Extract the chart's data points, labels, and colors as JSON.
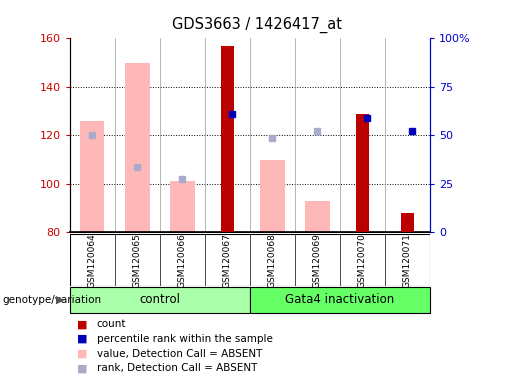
{
  "title": "GDS3663 / 1426417_at",
  "samples": [
    "GSM120064",
    "GSM120065",
    "GSM120066",
    "GSM120067",
    "GSM120068",
    "GSM120069",
    "GSM120070",
    "GSM120071"
  ],
  "group_labels": [
    "control",
    "Gata4 inactivation"
  ],
  "control_indices": [
    0,
    1,
    2,
    3
  ],
  "gata4_indices": [
    4,
    5,
    6,
    7
  ],
  "ylim_left": [
    80,
    160
  ],
  "ylim_right": [
    0,
    100
  ],
  "yticks_left": [
    80,
    100,
    120,
    140,
    160
  ],
  "yticks_right": [
    0,
    25,
    50,
    75,
    100
  ],
  "ytick_labels_right": [
    "0",
    "25",
    "50",
    "75",
    "100%"
  ],
  "bar_base": 80,
  "pink_bars_values": [
    126,
    150,
    101,
    null,
    110,
    93,
    null,
    null
  ],
  "pink_color": "#ffb8b8",
  "red_bars_values": [
    null,
    null,
    null,
    157,
    null,
    null,
    129,
    88
  ],
  "red_color": "#bb0000",
  "blue_sq_values": [
    null,
    null,
    null,
    129,
    null,
    null,
    127,
    122
  ],
  "blue_color": "#0000bb",
  "lb_sq_values": [
    120,
    107,
    102,
    null,
    119,
    122,
    null,
    null
  ],
  "lb_color": "#aaaacc",
  "pink_bar_width": 0.55,
  "red_bar_width": 0.28,
  "left_color": "#cc0000",
  "right_color": "#0000cc",
  "control_bg": "#aaffaa",
  "gata4_bg": "#66ff66",
  "label_bg": "#cccccc",
  "genotype_label": "genotype/variation"
}
